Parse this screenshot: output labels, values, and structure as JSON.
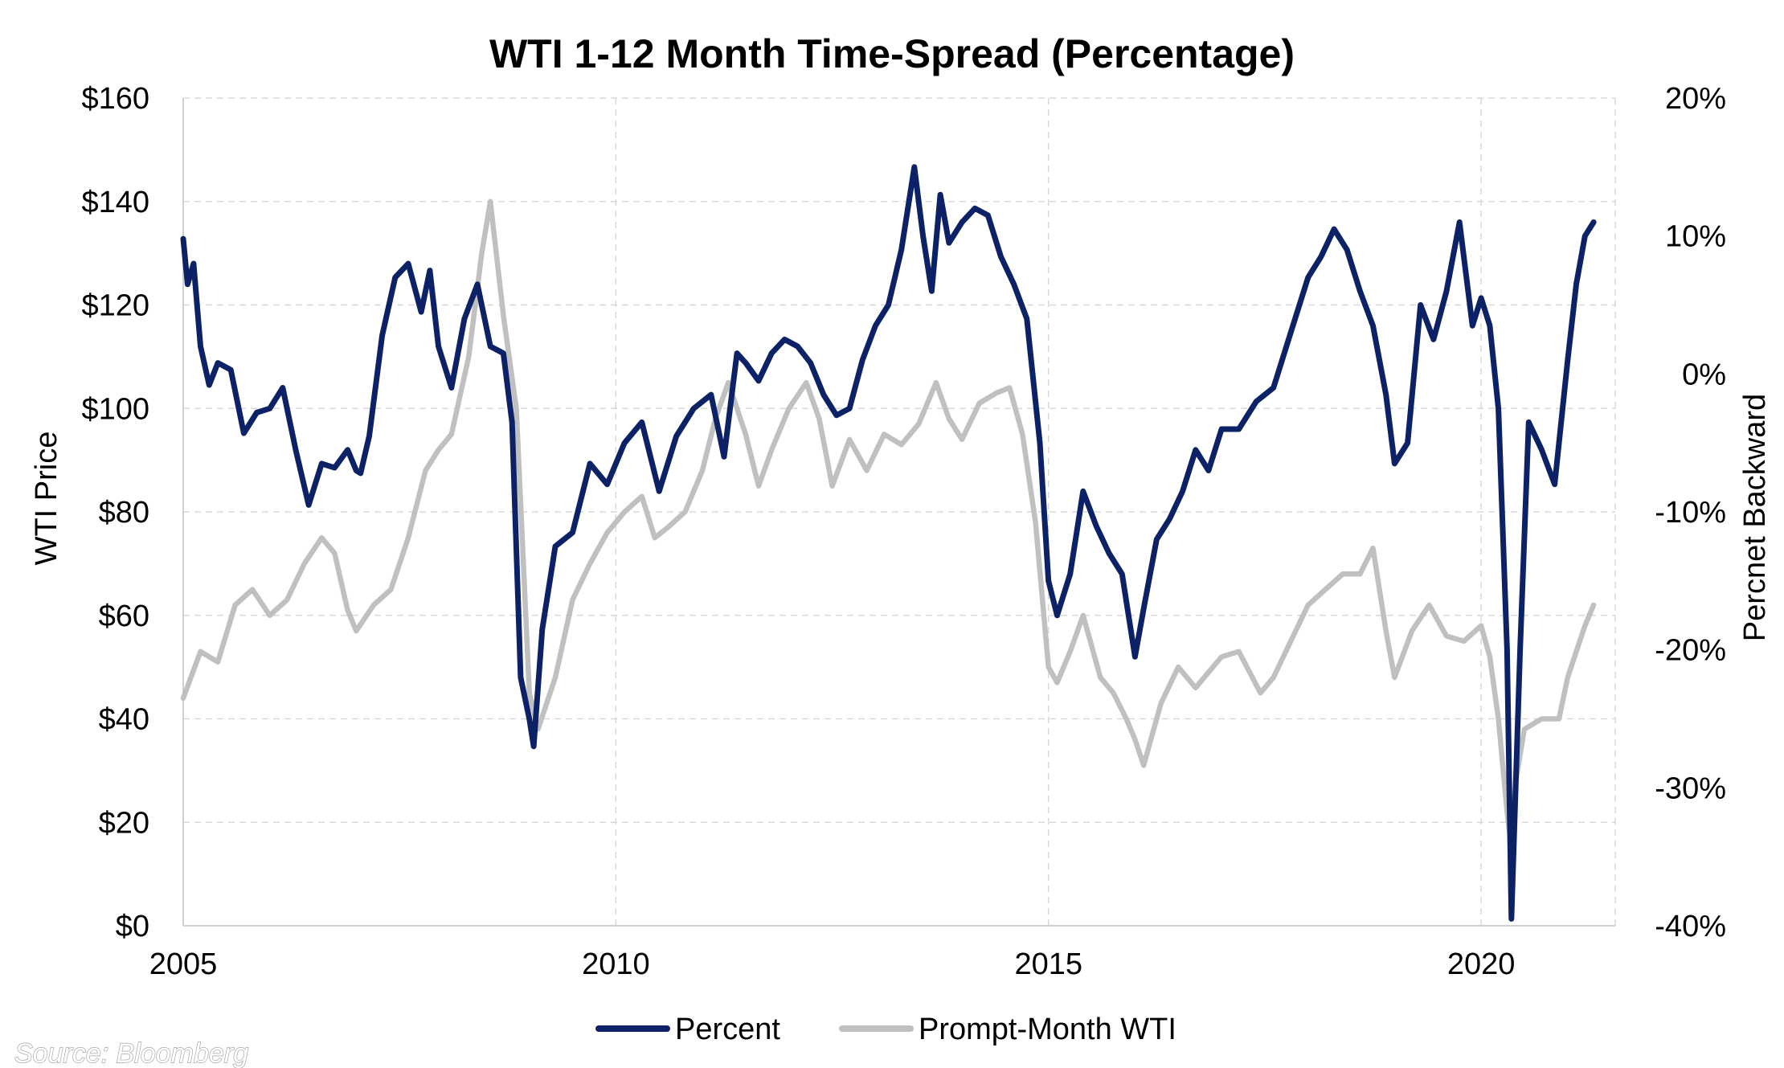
{
  "chart_data": {
    "type": "line",
    "title": "WTI 1-12 Month Time-Spread (Percentage)",
    "source": "Source: Bloomberg",
    "xlim": [
      2005.0,
      2021.55
    ],
    "x_ticks": [
      2005,
      2010,
      2015,
      2020
    ],
    "x_tick_labels": [
      "2005",
      "2010",
      "2015",
      "2020"
    ],
    "y_left": {
      "label": "WTI Price",
      "ylim": [
        0,
        160
      ],
      "ticks": [
        0,
        20,
        40,
        60,
        80,
        100,
        120,
        140,
        160
      ],
      "tick_labels": [
        "$0",
        "$20",
        "$40",
        "$60",
        "$80",
        "$100",
        "$120",
        "$140",
        "$160"
      ]
    },
    "y_right": {
      "label": "Percnet Backward",
      "ylim": [
        -40,
        20
      ],
      "ticks": [
        -40,
        -30,
        -20,
        -10,
        0,
        10,
        20
      ],
      "tick_labels": [
        "-40%",
        "-30%",
        "-20%",
        "-10%",
        "0%",
        "10%",
        "20%"
      ]
    },
    "grid": {
      "horizontal": true,
      "vertical": true,
      "style": "dashed"
    },
    "legend": {
      "position": "bottom"
    },
    "series": [
      {
        "name": "Percent",
        "axis": "right",
        "color": "#0d2266",
        "x": [
          2005.0,
          2005.05,
          2005.12,
          2005.2,
          2005.3,
          2005.4,
          2005.55,
          2005.7,
          2005.85,
          2006.0,
          2006.15,
          2006.3,
          2006.45,
          2006.6,
          2006.75,
          2006.9,
          2007.0,
          2007.05,
          2007.15,
          2007.3,
          2007.45,
          2007.6,
          2007.75,
          2007.85,
          2007.95,
          2008.1,
          2008.25,
          2008.4,
          2008.55,
          2008.7,
          2008.8,
          2008.9,
          2009.0,
          2009.05,
          2009.15,
          2009.3,
          2009.5,
          2009.7,
          2009.9,
          2010.1,
          2010.3,
          2010.5,
          2010.7,
          2010.9,
          2011.1,
          2011.25,
          2011.4,
          2011.5,
          2011.65,
          2011.8,
          2011.95,
          2012.1,
          2012.25,
          2012.4,
          2012.55,
          2012.7,
          2012.85,
          2013.0,
          2013.15,
          2013.3,
          2013.45,
          2013.55,
          2013.65,
          2013.75,
          2013.85,
          2014.0,
          2014.15,
          2014.3,
          2014.45,
          2014.6,
          2014.75,
          2014.9,
          2015.0,
          2015.1,
          2015.25,
          2015.4,
          2015.55,
          2015.7,
          2015.85,
          2016.0,
          2016.1,
          2016.25,
          2016.4,
          2016.55,
          2016.7,
          2016.85,
          2017.0,
          2017.2,
          2017.4,
          2017.6,
          2017.8,
          2018.0,
          2018.15,
          2018.3,
          2018.45,
          2018.6,
          2018.75,
          2018.9,
          2019.0,
          2019.15,
          2019.3,
          2019.45,
          2019.6,
          2019.75,
          2019.9,
          2020.0,
          2020.1,
          2020.2,
          2020.3,
          2020.35,
          2020.45,
          2020.55,
          2020.7,
          2020.85,
          2021.0,
          2021.1,
          2021.2,
          2021.3
        ],
        "y": [
          9.8,
          6.5,
          8.0,
          2.0,
          -0.8,
          0.8,
          0.3,
          -4.3,
          -2.8,
          -2.5,
          -1.0,
          -5.5,
          -9.5,
          -6.5,
          -6.8,
          -5.5,
          -7.0,
          -7.2,
          -4.5,
          2.8,
          7.0,
          8.0,
          4.5,
          7.5,
          2.0,
          -1.0,
          4.0,
          6.5,
          2.0,
          1.5,
          -3.5,
          -22.0,
          -25.0,
          -27.0,
          -18.5,
          -12.5,
          -11.5,
          -6.5,
          -8.0,
          -5.0,
          -3.5,
          -8.5,
          -4.5,
          -2.5,
          -1.5,
          -6.0,
          1.5,
          0.8,
          -0.5,
          1.5,
          2.5,
          2.0,
          0.8,
          -1.5,
          -3.0,
          -2.5,
          1.0,
          3.5,
          5.0,
          9.0,
          15.0,
          10.0,
          6.0,
          13.0,
          9.5,
          11.0,
          12.0,
          11.5,
          8.5,
          6.5,
          4.0,
          -5.0,
          -15.0,
          -17.5,
          -14.5,
          -8.5,
          -11.0,
          -13.0,
          -14.5,
          -20.5,
          -17.0,
          -12.0,
          -10.5,
          -8.5,
          -5.5,
          -7.0,
          -4.0,
          -4.0,
          -2.0,
          -1.0,
          3.0,
          7.0,
          8.5,
          10.5,
          9.0,
          6.0,
          3.5,
          -1.5,
          -6.5,
          -5.0,
          5.0,
          2.5,
          6.0,
          11.0,
          3.5,
          5.5,
          3.5,
          -2.5,
          -20.0,
          -39.5,
          -20.0,
          -3.5,
          -5.5,
          -8.0,
          1.0,
          6.5,
          10.0,
          11.0
        ]
      },
      {
        "name": "Prompt-Month WTI",
        "axis": "left",
        "color": "#c0c0c0",
        "x": [
          2005.0,
          2005.2,
          2005.4,
          2005.6,
          2005.8,
          2006.0,
          2006.2,
          2006.4,
          2006.6,
          2006.75,
          2006.9,
          2007.0,
          2007.2,
          2007.4,
          2007.6,
          2007.8,
          2007.95,
          2008.1,
          2008.3,
          2008.45,
          2008.55,
          2008.7,
          2008.85,
          2009.0,
          2009.1,
          2009.3,
          2009.5,
          2009.7,
          2009.9,
          2010.1,
          2010.3,
          2010.45,
          2010.6,
          2010.8,
          2011.0,
          2011.15,
          2011.3,
          2011.5,
          2011.65,
          2011.8,
          2012.0,
          2012.2,
          2012.35,
          2012.5,
          2012.7,
          2012.9,
          2013.1,
          2013.3,
          2013.5,
          2013.7,
          2013.85,
          2014.0,
          2014.2,
          2014.4,
          2014.55,
          2014.7,
          2014.85,
          2015.0,
          2015.1,
          2015.25,
          2015.4,
          2015.6,
          2015.75,
          2015.9,
          2016.0,
          2016.1,
          2016.3,
          2016.5,
          2016.7,
          2016.9,
          2017.0,
          2017.2,
          2017.45,
          2017.6,
          2017.8,
          2018.0,
          2018.2,
          2018.4,
          2018.6,
          2018.75,
          2018.9,
          2019.0,
          2019.2,
          2019.4,
          2019.6,
          2019.8,
          2020.0,
          2020.1,
          2020.2,
          2020.3,
          2020.35,
          2020.4,
          2020.5,
          2020.7,
          2020.9,
          2021.0,
          2021.1,
          2021.2,
          2021.3
        ],
        "y": [
          44.0,
          53.0,
          51.0,
          62.0,
          65.0,
          60.0,
          63.0,
          70.0,
          75.0,
          72.0,
          61.0,
          57.0,
          62.0,
          65.0,
          75.0,
          88.0,
          92.0,
          95.0,
          110.0,
          130.0,
          140.0,
          118.0,
          100.0,
          45.0,
          38.0,
          48.0,
          63.0,
          70.0,
          76.0,
          80.0,
          83.0,
          75.0,
          77.0,
          80.0,
          88.0,
          98.0,
          105.0,
          95.0,
          85.0,
          92.0,
          100.0,
          105.0,
          98.0,
          85.0,
          94.0,
          88.0,
          95.0,
          93.0,
          97.0,
          105.0,
          98.0,
          94.0,
          101.0,
          103.0,
          104.0,
          95.0,
          78.0,
          50.0,
          47.0,
          53.0,
          60.0,
          48.0,
          45.0,
          40.0,
          36.0,
          31.0,
          43.0,
          50.0,
          46.0,
          50.0,
          52.0,
          53.0,
          45.0,
          48.0,
          55.0,
          62.0,
          65.0,
          68.0,
          68.0,
          73.0,
          57.0,
          48.0,
          57.0,
          62.0,
          56.0,
          55.0,
          58.0,
          52.0,
          40.0,
          22.0,
          15.0,
          28.0,
          38.0,
          40.0,
          40.0,
          48.0,
          53.0,
          58.0,
          62.0
        ]
      }
    ]
  }
}
